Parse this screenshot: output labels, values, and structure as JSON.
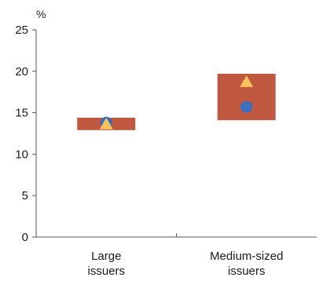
{
  "chart_data": {
    "type": "floating-range",
    "unit_label": "%",
    "ylim": [
      0,
      25
    ],
    "yticks": [
      "0",
      "5",
      "10",
      "15",
      "20",
      "25"
    ],
    "ytick_values": [
      0,
      5,
      10,
      15,
      20,
      25
    ],
    "grid": false,
    "categories": [
      {
        "label_lines": [
          "Large",
          "issuers"
        ],
        "range": [
          12.9,
          14.4
        ],
        "triangle": 13.6,
        "circle": 13.8
      },
      {
        "label_lines": [
          "Medium-sized",
          "issuers"
        ],
        "range": [
          14.1,
          19.7
        ],
        "triangle": 18.7,
        "circle": 15.7
      }
    ],
    "colors": {
      "range_box": "#c0573f",
      "triangle": "#f7c35c",
      "circle": "#3a6fbf",
      "axis": "#555555"
    }
  }
}
